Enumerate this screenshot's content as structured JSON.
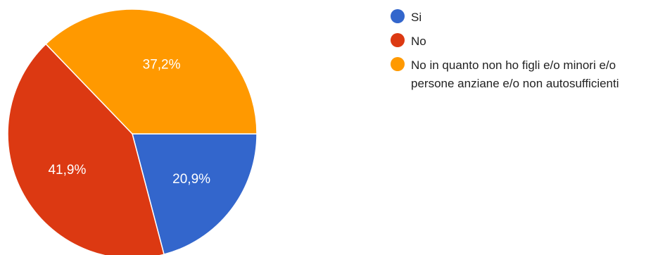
{
  "chart_data": {
    "type": "pie",
    "slices": [
      {
        "label": "Si",
        "value": 20.9,
        "display": "20,9%",
        "color": "#3366cc"
      },
      {
        "label": "No",
        "value": 41.9,
        "display": "41,9%",
        "color": "#dc3912"
      },
      {
        "label": "No in quanto non ho figli e/o minori e/o persone anziane e/o non autosufficienti",
        "value": 37.2,
        "display": "37,2%",
        "color": "#ff9900"
      }
    ],
    "legend_position": "right",
    "start_angle_deg": 90,
    "direction": "clockwise"
  }
}
